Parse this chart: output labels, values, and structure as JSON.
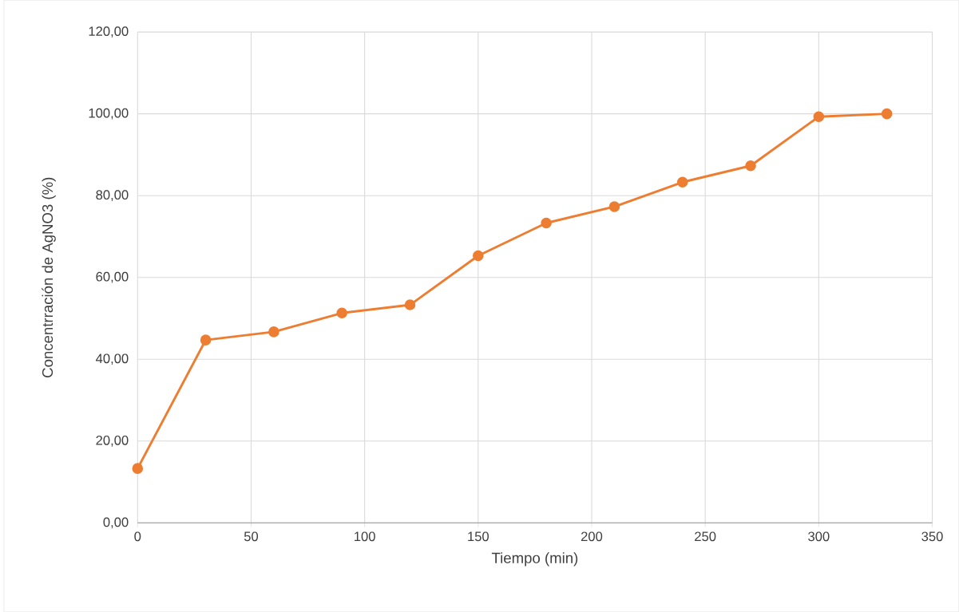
{
  "chart_data": {
    "type": "line",
    "xlabel": "Tiempo (min)",
    "ylabel": "Concentrración de AgNO3 (%)",
    "x": [
      0,
      30,
      60,
      90,
      120,
      150,
      180,
      210,
      240,
      270,
      300,
      330
    ],
    "series": [
      {
        "color": "#ed7d31",
        "values": [
          13.3,
          44.7,
          46.7,
          51.3,
          53.3,
          65.3,
          73.3,
          77.3,
          83.3,
          87.3,
          99.3,
          100.0
        ]
      }
    ],
    "xlim": [
      0,
      350
    ],
    "xticks": [
      0,
      50,
      100,
      150,
      200,
      250,
      300,
      350
    ],
    "ylim": [
      0,
      120
    ],
    "yticks": [
      {
        "value": 0,
        "label": "0,00"
      },
      {
        "value": 20,
        "label": "20,00"
      },
      {
        "value": 40,
        "label": "40,00"
      },
      {
        "value": 60,
        "label": "60,00"
      },
      {
        "value": 80,
        "label": "80,00"
      },
      {
        "value": 100,
        "label": "100,00"
      },
      {
        "value": 120,
        "label": "120,00"
      }
    ],
    "grid": true,
    "marker": "circle"
  }
}
